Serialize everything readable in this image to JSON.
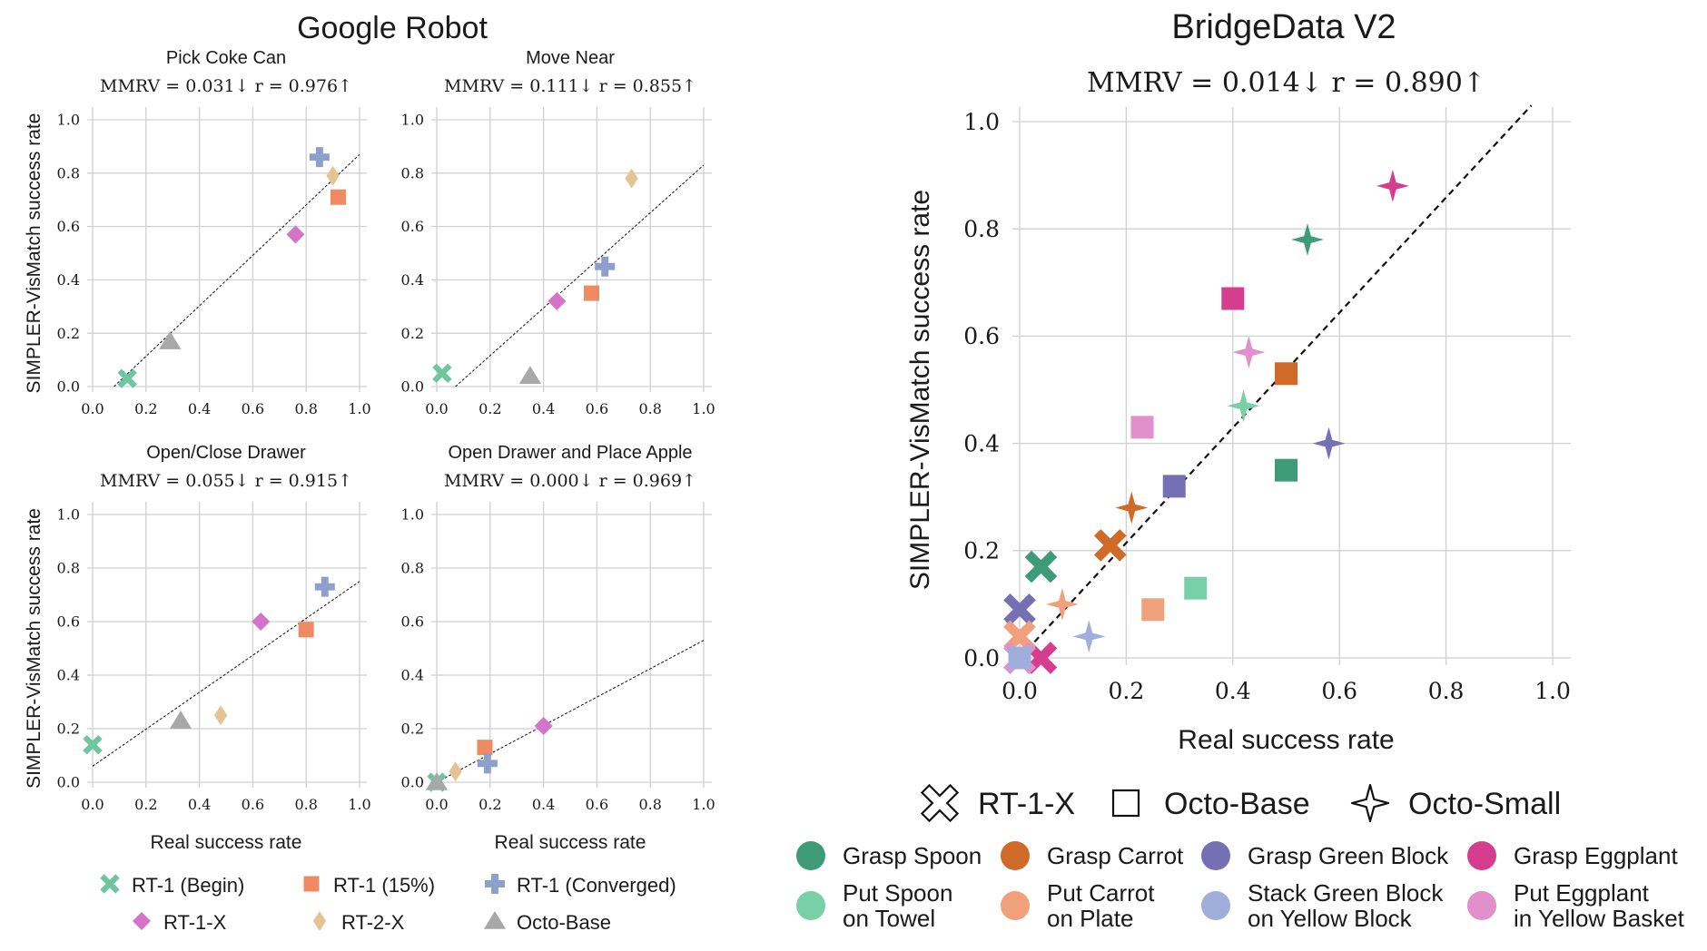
{
  "google_robot": {
    "title": "Google Robot",
    "x_label": "Real success rate",
    "y_label": "SIMPLER-VisMatch success rate",
    "legend": [
      {
        "name": "RT-1 (Begin)",
        "marker": "x",
        "color": "#6ec6a0"
      },
      {
        "name": "RT-1 (15%)",
        "marker": "square",
        "color": "#ef8a62"
      },
      {
        "name": "RT-1 (Converged)",
        "marker": "plus",
        "color": "#8da0cb"
      },
      {
        "name": "RT-1-X",
        "marker": "diamond",
        "color": "#d473c7"
      },
      {
        "name": "RT-2-X",
        "marker": "thin-diamond",
        "color": "#e5c494"
      },
      {
        "name": "Octo-Base",
        "marker": "triangle",
        "color": "#a8a8a8"
      }
    ]
  },
  "bridge": {
    "title": "BridgeData V2",
    "x_label": "Real success rate",
    "y_label": "SIMPLER-VisMatch success rate",
    "shape_legend": [
      {
        "name": "RT-1-X",
        "marker": "x-outline"
      },
      {
        "name": "Octo-Base",
        "marker": "square-outline"
      },
      {
        "name": "Octo-Small",
        "marker": "star-outline"
      }
    ],
    "task_legend": [
      {
        "lines": [
          "Grasp Spoon"
        ],
        "color": "#3e9b78"
      },
      {
        "lines": [
          "Grasp Carrot"
        ],
        "color": "#cf6a28"
      },
      {
        "lines": [
          "Grasp Green Block"
        ],
        "color": "#7570b3"
      },
      {
        "lines": [
          "Grasp Eggplant"
        ],
        "color": "#d63d8f"
      },
      {
        "lines": [
          "Put Spoon",
          "on Towel"
        ],
        "color": "#79cfa8"
      },
      {
        "lines": [
          "Put Carrot",
          "on Plate"
        ],
        "color": "#f0a07a"
      },
      {
        "lines": [
          "Stack Green Block",
          "on Yellow Block"
        ],
        "color": "#a0aedb"
      },
      {
        "lines": [
          "Put Eggplant",
          "in Yellow Basket"
        ],
        "color": "#e190cb"
      }
    ]
  },
  "chart_data": [
    {
      "type": "scatter",
      "title": "Pick Coke Can",
      "subtitle": "MMRV = 0.031↓  r = 0.976↑",
      "xlabel": "Real success rate",
      "ylabel": "SIMPLER-VisMatch success rate",
      "xlim": [
        0,
        1
      ],
      "ylim": [
        0,
        1
      ],
      "ticks": [
        "0.0",
        "0.2",
        "0.4",
        "0.6",
        "0.8",
        "1.0"
      ],
      "fit_line": [
        [
          0.08,
          0.0
        ],
        [
          1.0,
          0.87
        ]
      ],
      "series": [
        {
          "name": "RT-1 (Begin)",
          "x": 0.13,
          "y": 0.03
        },
        {
          "name": "RT-1 (15%)",
          "x": 0.92,
          "y": 0.71
        },
        {
          "name": "RT-1 (Converged)",
          "x": 0.85,
          "y": 0.86
        },
        {
          "name": "RT-1-X",
          "x": 0.76,
          "y": 0.57
        },
        {
          "name": "RT-2-X",
          "x": 0.9,
          "y": 0.79
        },
        {
          "name": "Octo-Base",
          "x": 0.29,
          "y": 0.17
        }
      ]
    },
    {
      "type": "scatter",
      "title": "Move Near",
      "subtitle": "MMRV = 0.111↓  r = 0.855↑",
      "xlabel": "Real success rate",
      "ylabel": "SIMPLER-VisMatch success rate",
      "xlim": [
        0,
        1
      ],
      "ylim": [
        0,
        1
      ],
      "ticks": [
        "0.0",
        "0.2",
        "0.4",
        "0.6",
        "0.8",
        "1.0"
      ],
      "fit_line": [
        [
          0.07,
          0.0
        ],
        [
          1.0,
          0.83
        ]
      ],
      "series": [
        {
          "name": "RT-1 (Begin)",
          "x": 0.02,
          "y": 0.05
        },
        {
          "name": "RT-1 (15%)",
          "x": 0.58,
          "y": 0.35
        },
        {
          "name": "RT-1 (Converged)",
          "x": 0.63,
          "y": 0.45
        },
        {
          "name": "RT-1-X",
          "x": 0.45,
          "y": 0.32
        },
        {
          "name": "RT-2-X",
          "x": 0.73,
          "y": 0.78
        },
        {
          "name": "Octo-Base",
          "x": 0.35,
          "y": 0.04
        }
      ]
    },
    {
      "type": "scatter",
      "title": "Open/Close Drawer",
      "subtitle": "MMRV = 0.055↓  r = 0.915↑",
      "xlabel": "Real success rate",
      "ylabel": "SIMPLER-VisMatch success rate",
      "xlim": [
        0,
        1
      ],
      "ylim": [
        0,
        1
      ],
      "ticks": [
        "0.0",
        "0.2",
        "0.4",
        "0.6",
        "0.8",
        "1.0"
      ],
      "fit_line": [
        [
          0.0,
          0.06
        ],
        [
          1.0,
          0.75
        ]
      ],
      "series": [
        {
          "name": "RT-1 (Begin)",
          "x": 0.0,
          "y": 0.14
        },
        {
          "name": "RT-1 (15%)",
          "x": 0.8,
          "y": 0.57
        },
        {
          "name": "RT-1 (Converged)",
          "x": 0.87,
          "y": 0.73
        },
        {
          "name": "RT-1-X",
          "x": 0.63,
          "y": 0.6
        },
        {
          "name": "RT-2-X",
          "x": 0.48,
          "y": 0.25
        },
        {
          "name": "Octo-Base",
          "x": 0.33,
          "y": 0.23
        }
      ]
    },
    {
      "type": "scatter",
      "title": "Open Drawer and Place Apple",
      "subtitle": "MMRV = 0.000↓  r = 0.969↑",
      "xlabel": "Real success rate",
      "ylabel": "SIMPLER-VisMatch success rate",
      "xlim": [
        0,
        1
      ],
      "ylim": [
        0,
        1
      ],
      "ticks": [
        "0.0",
        "0.2",
        "0.4",
        "0.6",
        "0.8",
        "1.0"
      ],
      "fit_line": [
        [
          0.0,
          0.0
        ],
        [
          1.0,
          0.53
        ]
      ],
      "series": [
        {
          "name": "RT-1 (Begin)",
          "x": 0.0,
          "y": 0.0
        },
        {
          "name": "RT-1 (15%)",
          "x": 0.18,
          "y": 0.13
        },
        {
          "name": "RT-1 (Converged)",
          "x": 0.19,
          "y": 0.07
        },
        {
          "name": "RT-1-X",
          "x": 0.4,
          "y": 0.21
        },
        {
          "name": "RT-2-X",
          "x": 0.07,
          "y": 0.04
        },
        {
          "name": "Octo-Base",
          "x": 0.0,
          "y": 0.0
        }
      ]
    },
    {
      "type": "scatter",
      "title": "BridgeData V2",
      "subtitle": "MMRV = 0.014↓  r = 0.890↑",
      "xlabel": "Real success rate",
      "ylabel": "SIMPLER-VisMatch success rate",
      "xlim": [
        0,
        1
      ],
      "ylim": [
        0,
        1
      ],
      "ticks": [
        "0.0",
        "0.2",
        "0.4",
        "0.6",
        "0.8",
        "1.0"
      ],
      "fit_line": [
        [
          0.0,
          0.0
        ],
        [
          0.96,
          1.03
        ]
      ],
      "series": [
        {
          "name": "RT-1-X",
          "task": "Grasp Spoon",
          "x": 0.04,
          "y": 0.17
        },
        {
          "name": "RT-1-X",
          "task": "Grasp Carrot",
          "x": 0.17,
          "y": 0.21
        },
        {
          "name": "RT-1-X",
          "task": "Grasp Green Block",
          "x": 0.0,
          "y": 0.09
        },
        {
          "name": "RT-1-X",
          "task": "Grasp Eggplant",
          "x": 0.04,
          "y": 0.0
        },
        {
          "name": "RT-1-X",
          "task": "Put Spoon on Towel",
          "x": 0.0,
          "y": 0.0
        },
        {
          "name": "RT-1-X",
          "task": "Put Carrot on Plate",
          "x": 0.0,
          "y": 0.04
        },
        {
          "name": "RT-1-X",
          "task": "Stack Green Block on Yellow Block",
          "x": 0.0,
          "y": 0.0
        },
        {
          "name": "RT-1-X",
          "task": "Put Eggplant in Yellow Basket",
          "x": 0.0,
          "y": 0.0
        },
        {
          "name": "Octo-Base",
          "task": "Grasp Spoon",
          "x": 0.5,
          "y": 0.35
        },
        {
          "name": "Octo-Base",
          "task": "Grasp Carrot",
          "x": 0.5,
          "y": 0.53
        },
        {
          "name": "Octo-Base",
          "task": "Grasp Green Block",
          "x": 0.29,
          "y": 0.32
        },
        {
          "name": "Octo-Base",
          "task": "Grasp Eggplant",
          "x": 0.4,
          "y": 0.67
        },
        {
          "name": "Octo-Base",
          "task": "Put Spoon on Towel",
          "x": 0.33,
          "y": 0.13
        },
        {
          "name": "Octo-Base",
          "task": "Put Carrot on Plate",
          "x": 0.25,
          "y": 0.09
        },
        {
          "name": "Octo-Base",
          "task": "Stack Green Block on Yellow Block",
          "x": 0.0,
          "y": 0.0
        },
        {
          "name": "Octo-Base",
          "task": "Put Eggplant in Yellow Basket",
          "x": 0.23,
          "y": 0.43
        },
        {
          "name": "Octo-Small",
          "task": "Grasp Spoon",
          "x": 0.54,
          "y": 0.78
        },
        {
          "name": "Octo-Small",
          "task": "Grasp Carrot",
          "x": 0.21,
          "y": 0.28
        },
        {
          "name": "Octo-Small",
          "task": "Grasp Green Block",
          "x": 0.58,
          "y": 0.4
        },
        {
          "name": "Octo-Small",
          "task": "Grasp Eggplant",
          "x": 0.7,
          "y": 0.88
        },
        {
          "name": "Octo-Small",
          "task": "Put Spoon on Towel",
          "x": 0.42,
          "y": 0.47
        },
        {
          "name": "Octo-Small",
          "task": "Put Carrot on Plate",
          "x": 0.08,
          "y": 0.1
        },
        {
          "name": "Octo-Small",
          "task": "Stack Green Block on Yellow Block",
          "x": 0.13,
          "y": 0.04
        },
        {
          "name": "Octo-Small",
          "task": "Put Eggplant in Yellow Basket",
          "x": 0.43,
          "y": 0.57
        }
      ]
    }
  ]
}
